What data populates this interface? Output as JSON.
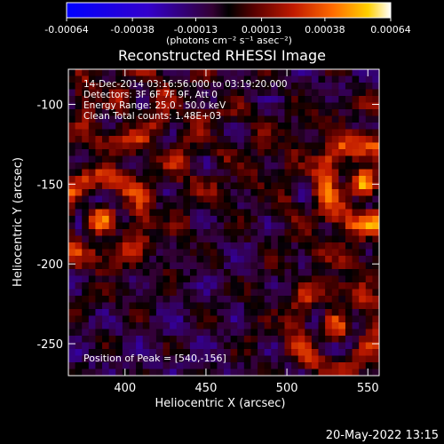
{
  "chart_data": {
    "type": "heatmap",
    "title": "Reconstructed RHESSI Image",
    "xlabel": "Heliocentric X (arcsec)",
    "ylabel": "Heliocentric Y (arcsec)",
    "xlim": [
      365,
      557
    ],
    "ylim": [
      -270,
      -78
    ],
    "xticks": [
      400,
      450,
      500,
      550
    ],
    "yticks": [
      -100,
      -150,
      -200,
      -250
    ],
    "colorbar": {
      "ticks": [
        "-0.00064",
        "-0.00038",
        "-0.00013",
        "0.00013",
        "0.00038",
        "0.00064"
      ],
      "range": [
        -0.00064,
        0.00064
      ],
      "unit_label": "(photons cm⁻² s⁻¹ asec⁻²)",
      "colormap": [
        "#0000ff",
        "#3300cc",
        "#330033",
        "#000000",
        "#5a0000",
        "#c01a00",
        "#ff6a00",
        "#ffd000",
        "#ffffff"
      ]
    },
    "annotations": [
      "14-Dec-2014 03:16:56.000 to 03:19:20.000",
      "Detectors: 3F 6F 7F 9F, Att 0",
      "Energy Range: 25.0 - 50.0 keV",
      "Clean     Total counts: 1.48E+03"
    ],
    "peak_label": "Position of Peak = [540,-156]",
    "peak": {
      "x": 540,
      "y": -156
    },
    "bright_sources": [
      {
        "x": 548,
        "y": -150,
        "level": 0.00064
      },
      {
        "x": 385,
        "y": -172,
        "level": 0.00045
      },
      {
        "x": 398,
        "y": -98,
        "level": 0.0003
      },
      {
        "x": 530,
        "y": -240,
        "level": 0.0004
      },
      {
        "x": 460,
        "y": -130,
        "level": 0.00022
      }
    ]
  },
  "footer": {
    "timestamp": "20-May-2022 13:15"
  }
}
